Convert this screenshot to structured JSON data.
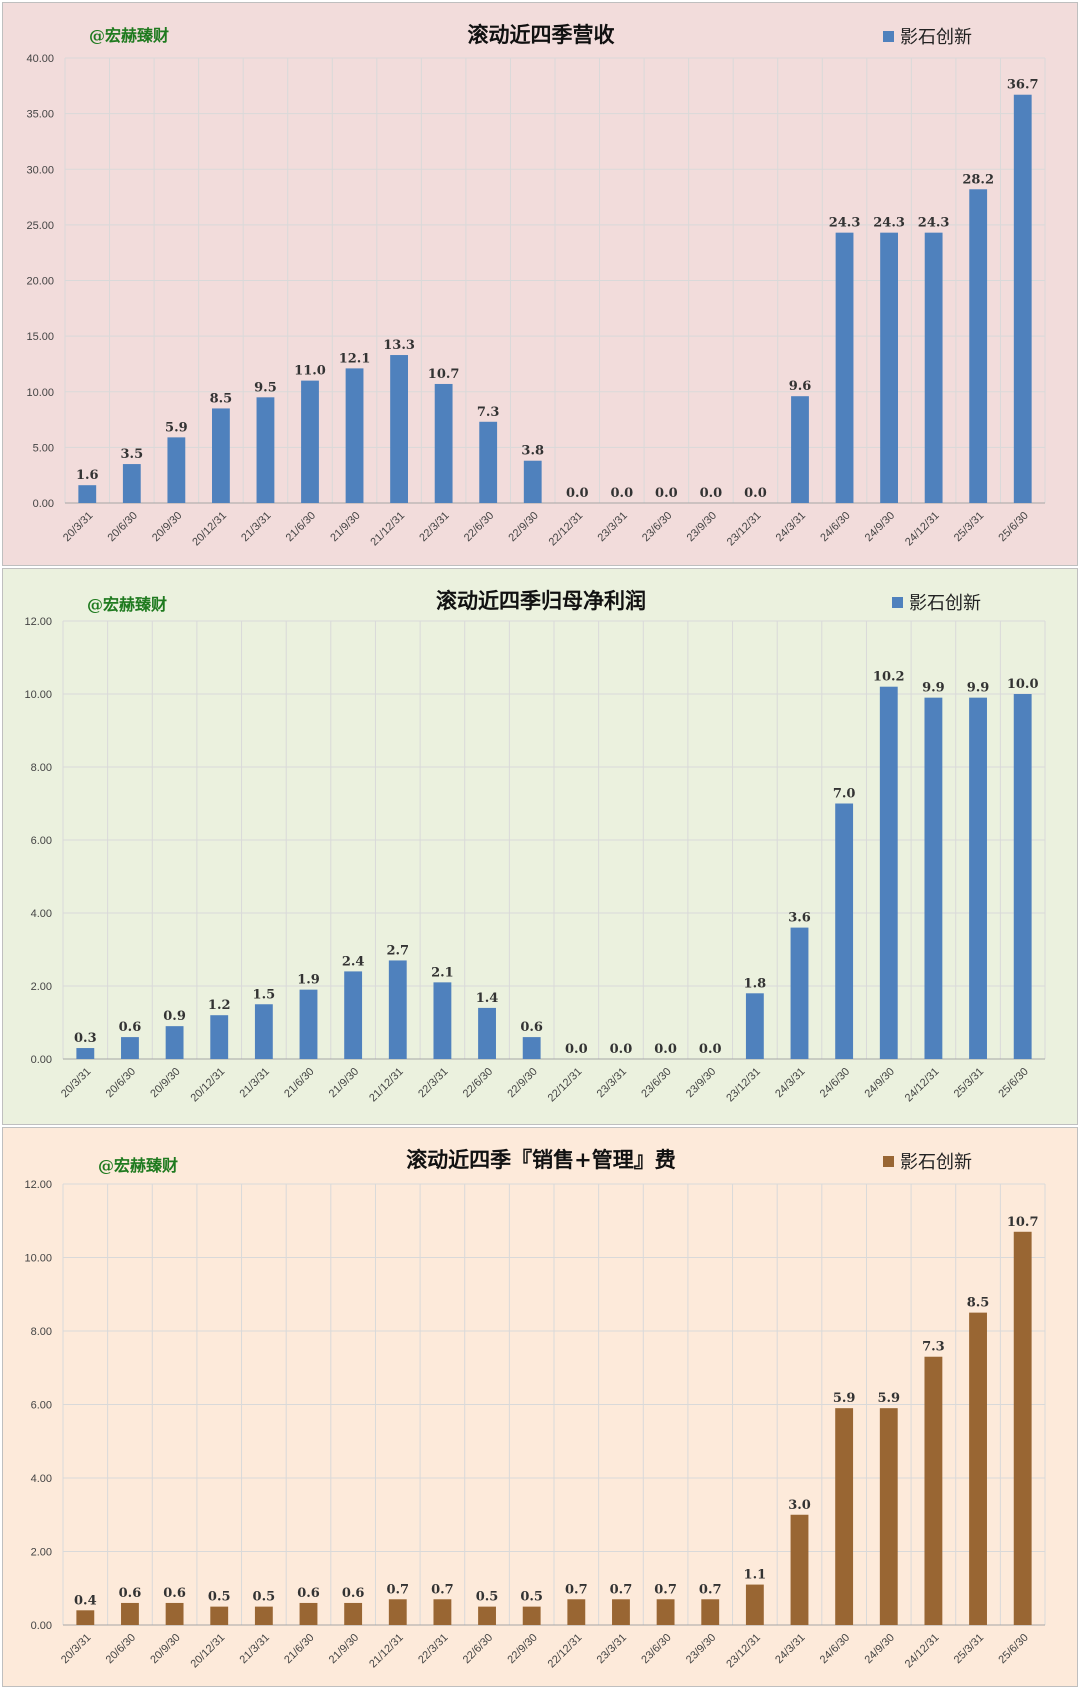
{
  "chart_data": [
    {
      "type": "bar",
      "watermark": "@宏赫臻财",
      "title": "滚动近四季营收",
      "legend": "影石创新",
      "color": "#4f81bd",
      "background": "#f2dcdb",
      "ylim": [
        0,
        40
      ],
      "yticks": [
        "0.00",
        "5.00",
        "10.00",
        "15.00",
        "20.00",
        "25.00",
        "30.00",
        "35.00",
        "40.00"
      ],
      "categories": [
        "20/3/31",
        "20/6/30",
        "20/9/30",
        "20/12/31",
        "21/3/31",
        "21/6/30",
        "21/9/30",
        "21/12/31",
        "22/3/31",
        "22/6/30",
        "22/9/30",
        "22/12/31",
        "23/3/31",
        "23/6/30",
        "23/9/30",
        "23/12/31",
        "24/3/31",
        "24/6/30",
        "24/9/30",
        "24/12/31",
        "25/3/31",
        "25/6/30"
      ],
      "values": [
        1.6,
        3.5,
        5.9,
        8.5,
        9.5,
        11.0,
        12.1,
        13.3,
        10.7,
        7.3,
        3.8,
        0,
        0,
        0,
        0,
        0,
        9.6,
        24.3,
        24.3,
        24.3,
        28.2,
        36.7
      ],
      "labels": [
        "1.6",
        "3.5",
        "5.9",
        "8.5",
        "9.5",
        "11.0",
        "12.1",
        "13.3",
        "10.7",
        "7.3",
        "3.8",
        "0.0",
        "0.0",
        "0.0",
        "0.0",
        "0.0",
        "9.6",
        "24.3",
        "24.3",
        "24.3",
        "28.2",
        "36.7"
      ]
    },
    {
      "type": "bar",
      "watermark": "@宏赫臻财",
      "title": "滚动近四季归母净利润",
      "legend": "影石创新",
      "color": "#4f81bd",
      "background": "#ebf1de",
      "ylim": [
        0,
        12
      ],
      "yticks": [
        "0.00",
        "2.00",
        "4.00",
        "6.00",
        "8.00",
        "10.00",
        "12.00"
      ],
      "categories": [
        "20/3/31",
        "20/6/30",
        "20/9/30",
        "20/12/31",
        "21/3/31",
        "21/6/30",
        "21/9/30",
        "21/12/31",
        "22/3/31",
        "22/6/30",
        "22/9/30",
        "22/12/31",
        "23/3/31",
        "23/6/30",
        "23/9/30",
        "23/12/31",
        "24/3/31",
        "24/6/30",
        "24/9/30",
        "24/12/31",
        "25/3/31",
        "25/6/30"
      ],
      "values": [
        0.3,
        0.6,
        0.9,
        1.2,
        1.5,
        1.9,
        2.4,
        2.7,
        2.1,
        1.4,
        0.6,
        0,
        0,
        0,
        0,
        1.8,
        3.6,
        7.0,
        10.2,
        9.9,
        9.9,
        10.0
      ],
      "labels": [
        "0.3",
        "0.6",
        "0.9",
        "1.2",
        "1.5",
        "1.9",
        "2.4",
        "2.7",
        "2.1",
        "1.4",
        "0.6",
        "0.0",
        "0.0",
        "0.0",
        "0.0",
        "1.8",
        "3.6",
        "7.0",
        "10.2",
        "9.9",
        "9.9",
        "10.0"
      ]
    },
    {
      "type": "bar",
      "watermark": "@宏赫臻财",
      "title": "滚动近四季『销售+管理』费",
      "legend": "影石创新",
      "color": "#996633",
      "background": "#fdeada",
      "ylim": [
        0,
        12
      ],
      "yticks": [
        "0.00",
        "2.00",
        "4.00",
        "6.00",
        "8.00",
        "10.00",
        "12.00"
      ],
      "categories": [
        "20/3/31",
        "20/6/30",
        "20/9/30",
        "20/12/31",
        "21/3/31",
        "21/6/30",
        "21/9/30",
        "21/12/31",
        "22/3/31",
        "22/6/30",
        "22/9/30",
        "22/12/31",
        "23/3/31",
        "23/6/30",
        "23/9/30",
        "23/12/31",
        "24/3/31",
        "24/6/30",
        "24/9/30",
        "24/12/31",
        "25/3/31",
        "25/6/30"
      ],
      "values": [
        0.4,
        0.6,
        0.6,
        0.5,
        0.5,
        0.6,
        0.6,
        0.7,
        0.7,
        0.5,
        0.5,
        0.7,
        0.7,
        0.7,
        0.7,
        1.1,
        3.0,
        5.9,
        5.9,
        7.3,
        8.5,
        10.7
      ],
      "labels": [
        "0.4",
        "0.6",
        "0.6",
        "0.5",
        "0.5",
        "0.6",
        "0.6",
        "0.7",
        "0.7",
        "0.5",
        "0.5",
        "0.7",
        "0.7",
        "0.7",
        "0.7",
        "1.1",
        "3.0",
        "5.9",
        "5.9",
        "7.3",
        "8.5",
        "10.7"
      ]
    }
  ]
}
